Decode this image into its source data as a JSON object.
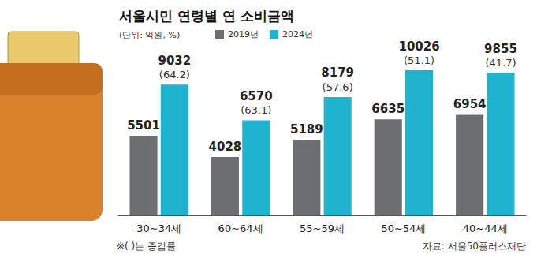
{
  "chart_data": {
    "type": "bar",
    "title": "서울시민 연령별 연 소비금액",
    "subtitle": "(단위: 억원, %)",
    "categories": [
      "30~34세",
      "60~64세",
      "55~59세",
      "50~54세",
      "40~44세"
    ],
    "series": [
      {
        "name": "2019년",
        "color": "#6d6e71",
        "values": [
          5501,
          4028,
          5189,
          6635,
          6954
        ]
      },
      {
        "name": "2024년",
        "color": "#20b3cf",
        "values": [
          9032,
          6570,
          8179,
          10026,
          9855
        ],
        "change": [
          64.2,
          63.1,
          57.6,
          51.1,
          41.7
        ],
        "change_labels": [
          "(64.2)",
          "(63.1)",
          "(57.6)",
          "(51.1)",
          "(41.7)"
        ]
      }
    ],
    "ylim": [
      0,
      11500
    ],
    "tick_labels": "x",
    "grid": false,
    "legend": "top",
    "data_labels": true,
    "notes": [
      "※( )는 증감률"
    ],
    "source": "자료: 서울50플러스재단"
  }
}
